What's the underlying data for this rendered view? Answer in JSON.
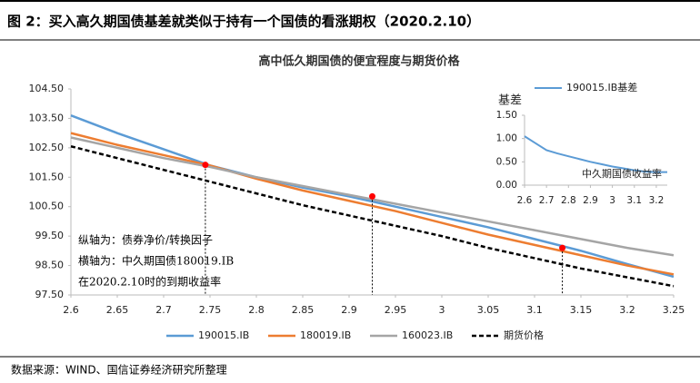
{
  "header": {
    "title": "图 2：买入高久期国债基差就类似于持有一个国债的看涨期权（2020.2.10）"
  },
  "source": "数据来源：WIND、国信证券经济研究所整理",
  "chart_data": [
    {
      "type": "line",
      "title": "高中低久期国债的便宜程度与期货价格",
      "x": [
        2.6,
        2.65,
        2.7,
        2.75,
        2.8,
        2.85,
        2.9,
        2.95,
        3.0,
        3.05,
        3.1,
        3.15,
        3.2,
        3.25
      ],
      "xlim": [
        2.6,
        3.25
      ],
      "xticks": [
        2.6,
        2.65,
        2.7,
        2.75,
        2.8,
        2.85,
        2.9,
        2.95,
        3,
        3.05,
        3.1,
        3.15,
        3.2,
        3.25
      ],
      "ylim": [
        97.5,
        104.5
      ],
      "yticks": [
        {
          "value": 97.5,
          "label": "97.50"
        },
        {
          "value": 98.5,
          "label": "98.50"
        },
        {
          "value": 99.5,
          "label": "99.50"
        },
        {
          "value": 100.5,
          "label": "100.50"
        },
        {
          "value": 101.5,
          "label": "101.50"
        },
        {
          "value": 102.5,
          "label": "102.50"
        },
        {
          "value": 103.5,
          "label": "103.50"
        },
        {
          "value": 104.5,
          "label": "104.50"
        }
      ],
      "series": [
        {
          "name": "190015.IB",
          "color": "#5b9bd5",
          "values": [
            103.6,
            103.0,
            102.45,
            101.9,
            101.5,
            101.15,
            100.85,
            100.5,
            100.15,
            99.8,
            99.4,
            99.0,
            98.55,
            98.12
          ]
        },
        {
          "name": "180019.IB",
          "color": "#ed7d31",
          "values": [
            103.0,
            102.6,
            102.25,
            101.9,
            101.45,
            101.05,
            100.7,
            100.35,
            99.95,
            99.55,
            99.2,
            98.85,
            98.5,
            98.2
          ]
        },
        {
          "name": "160023.IB",
          "color": "#a5a5a5",
          "values": [
            102.85,
            102.5,
            102.15,
            101.85,
            101.5,
            101.2,
            100.9,
            100.6,
            100.3,
            100.0,
            99.7,
            99.4,
            99.1,
            98.85
          ]
        },
        {
          "name": "期货价格",
          "color": "#000000",
          "dashed": true,
          "values": [
            102.55,
            102.15,
            101.75,
            101.35,
            100.95,
            100.55,
            100.2,
            99.85,
            99.5,
            99.1,
            98.75,
            98.4,
            98.1,
            97.8
          ]
        }
      ],
      "markers": {
        "color": "#ff0000",
        "x": [
          2.745,
          2.925,
          3.13
        ],
        "values": [
          101.92,
          100.85,
          99.1
        ]
      },
      "annotations": [
        "纵轴为：债券净价/转换因子",
        "横轴为：中久期国债180019.IB",
        "在2020.2.10时的到期收益率"
      ]
    },
    {
      "type": "line",
      "ylabel": "基差",
      "xlabel": "中久期国债收益率",
      "x": [
        2.6,
        2.65,
        2.7,
        2.75,
        2.8,
        2.85,
        2.9,
        2.95,
        3.0,
        3.05,
        3.1,
        3.15,
        3.2,
        3.25
      ],
      "xlim": [
        2.6,
        3.25
      ],
      "xticks": [
        2.6,
        2.7,
        2.8,
        2.9,
        3,
        3.1,
        3.2
      ],
      "ylim": [
        0,
        1.5
      ],
      "yticks": [
        {
          "value": 0,
          "label": "0.00"
        },
        {
          "value": 0.5,
          "label": "0.50"
        },
        {
          "value": 1,
          "label": "1.00"
        },
        {
          "value": 1.5,
          "label": "1.50"
        }
      ],
      "series": [
        {
          "name": "190015.IB基差",
          "color": "#5b9bd5",
          "values": [
            1.05,
            0.9,
            0.75,
            0.68,
            0.62,
            0.56,
            0.5,
            0.45,
            0.4,
            0.36,
            0.32,
            0.29,
            0.28,
            0.28
          ]
        }
      ]
    }
  ]
}
